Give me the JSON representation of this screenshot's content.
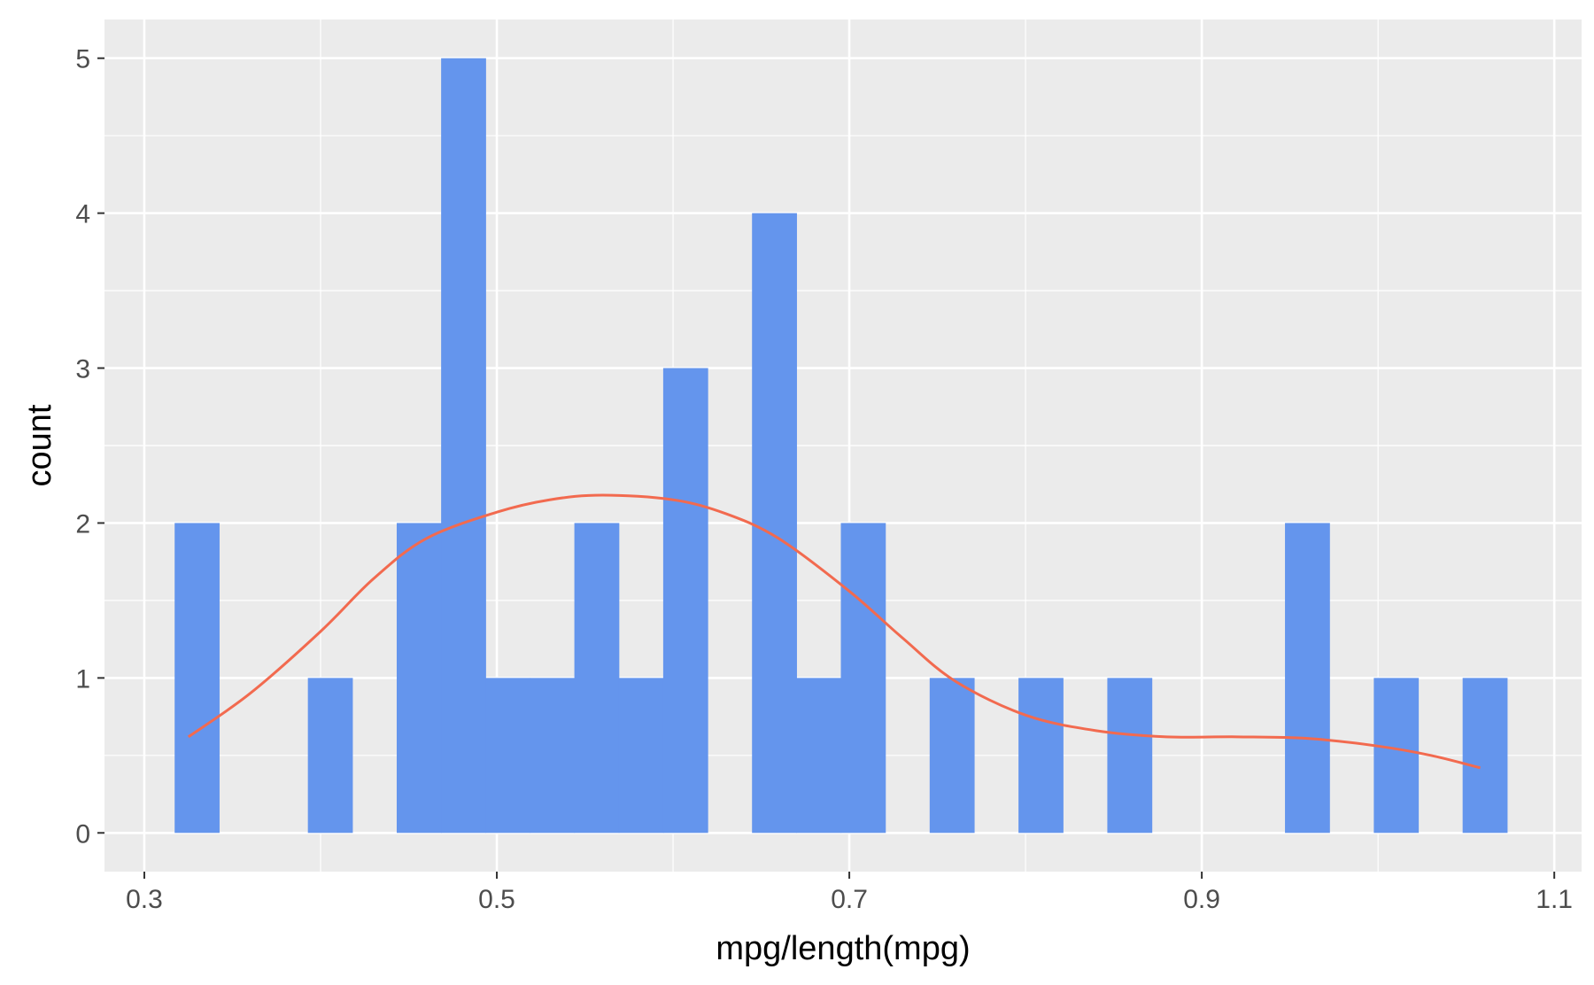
{
  "chart_data": {
    "type": "bar",
    "title": "",
    "xlabel": "mpg/length(mpg)",
    "ylabel": "count",
    "xlim": [
      0.2774,
      1.1155
    ],
    "ylim": [
      -0.25,
      5.25
    ],
    "x_ticks": [
      0.3,
      0.5,
      0.7,
      0.9,
      1.1
    ],
    "x_tick_labels": [
      "0.3",
      "0.5",
      "0.7",
      "0.9",
      "1.1"
    ],
    "y_ticks": [
      0,
      1,
      2,
      3,
      4,
      5
    ],
    "y_tick_labels": [
      "0",
      "1",
      "2",
      "3",
      "4",
      "5"
    ],
    "grid": true,
    "bins": [
      {
        "x0": 0.3172,
        "x1": 0.3424,
        "count": 2
      },
      {
        "x0": 0.3424,
        "x1": 0.3676,
        "count": 0
      },
      {
        "x0": 0.3676,
        "x1": 0.3928,
        "count": 0
      },
      {
        "x0": 0.3928,
        "x1": 0.418,
        "count": 1
      },
      {
        "x0": 0.418,
        "x1": 0.4432,
        "count": 0
      },
      {
        "x0": 0.4432,
        "x1": 0.4684,
        "count": 2
      },
      {
        "x0": 0.4684,
        "x1": 0.4936,
        "count": 5
      },
      {
        "x0": 0.4936,
        "x1": 0.5188,
        "count": 1
      },
      {
        "x0": 0.5188,
        "x1": 0.544,
        "count": 1
      },
      {
        "x0": 0.544,
        "x1": 0.5692,
        "count": 2
      },
      {
        "x0": 0.5692,
        "x1": 0.5944,
        "count": 1
      },
      {
        "x0": 0.5944,
        "x1": 0.6196,
        "count": 3
      },
      {
        "x0": 0.6196,
        "x1": 0.6448,
        "count": 0
      },
      {
        "x0": 0.6448,
        "x1": 0.67,
        "count": 4
      },
      {
        "x0": 0.67,
        "x1": 0.6952,
        "count": 1
      },
      {
        "x0": 0.6952,
        "x1": 0.7204,
        "count": 2
      },
      {
        "x0": 0.7204,
        "x1": 0.7456,
        "count": 0
      },
      {
        "x0": 0.7456,
        "x1": 0.7708,
        "count": 1
      },
      {
        "x0": 0.7708,
        "x1": 0.796,
        "count": 0
      },
      {
        "x0": 0.796,
        "x1": 0.8212,
        "count": 1
      },
      {
        "x0": 0.8212,
        "x1": 0.8464,
        "count": 0
      },
      {
        "x0": 0.8464,
        "x1": 0.8716,
        "count": 1
      },
      {
        "x0": 0.8716,
        "x1": 0.8968,
        "count": 0
      },
      {
        "x0": 0.8968,
        "x1": 0.922,
        "count": 0
      },
      {
        "x0": 0.922,
        "x1": 0.9472,
        "count": 0
      },
      {
        "x0": 0.9472,
        "x1": 0.9724,
        "count": 2
      },
      {
        "x0": 0.9724,
        "x1": 0.9976,
        "count": 0
      },
      {
        "x0": 0.9976,
        "x1": 1.0228,
        "count": 1
      },
      {
        "x0": 1.0228,
        "x1": 1.048,
        "count": 0
      },
      {
        "x0": 1.048,
        "x1": 1.0732,
        "count": 1
      }
    ],
    "density_curve": {
      "x": [
        0.325,
        0.36,
        0.4,
        0.43,
        0.46,
        0.5,
        0.53,
        0.56,
        0.6,
        0.63,
        0.66,
        0.7,
        0.73,
        0.76,
        0.8,
        0.84,
        0.88,
        0.92,
        0.96,
        1.0,
        1.03,
        1.058
      ],
      "y": [
        0.62,
        0.9,
        1.3,
        1.64,
        1.9,
        2.07,
        2.15,
        2.18,
        2.15,
        2.06,
        1.9,
        1.56,
        1.26,
        0.98,
        0.76,
        0.66,
        0.62,
        0.62,
        0.61,
        0.56,
        0.5,
        0.42
      ]
    },
    "colors": {
      "panel_background": "#ebebeb",
      "grid_major": "#ffffff",
      "bar_fill": "#6495ed",
      "density_line": "#f26a4f",
      "tick_text": "#4d4d4d",
      "tick_mark": "#333333",
      "title_text": "#000000"
    }
  }
}
